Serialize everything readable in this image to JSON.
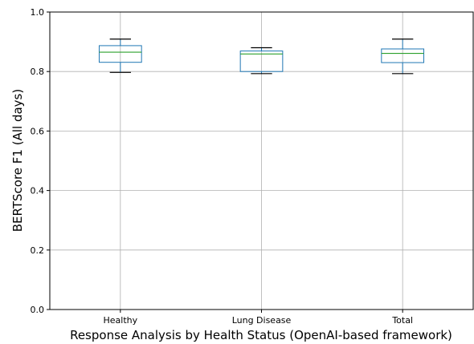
{
  "chart_data": {
    "type": "box",
    "title": "",
    "xlabel": "Response Analysis by Health Status (OpenAI-based framework)",
    "ylabel": "BERTScore F1 (All days)",
    "ylim": [
      0.0,
      1.0
    ],
    "yticks": [
      "0.0",
      "0.2",
      "0.4",
      "0.6",
      "0.8",
      "1.0"
    ],
    "categories": [
      "Healthy",
      "Lung Disease",
      "Total"
    ],
    "grid": true,
    "box_color": "#1f77b4",
    "median_color": "#2ca02c",
    "boxes": [
      {
        "label": "Healthy",
        "whisker_low": 0.797,
        "q1": 0.831,
        "median": 0.865,
        "q3": 0.887,
        "whisker_high": 0.909
      },
      {
        "label": "Lung Disease",
        "whisker_low": 0.793,
        "q1": 0.8,
        "median": 0.859,
        "q3": 0.869,
        "whisker_high": 0.88
      },
      {
        "label": "Total",
        "whisker_low": 0.793,
        "q1": 0.83,
        "median": 0.861,
        "q3": 0.876,
        "whisker_high": 0.909
      }
    ]
  }
}
